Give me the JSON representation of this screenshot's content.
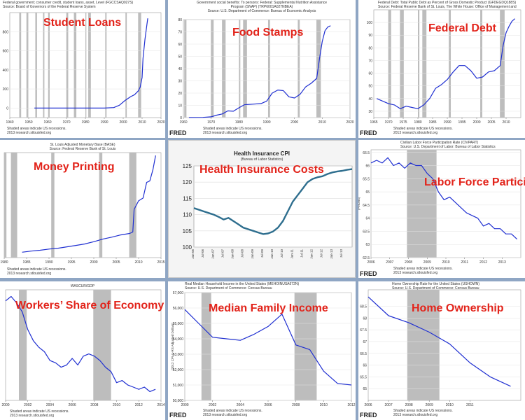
{
  "panels": [
    {
      "overlay": "Student Loans",
      "header": [
        "Federal government; consumer credit, student loans, asset, Level (FGCCSAQ027S)",
        "Source: Board of Governors of the Federal Reserve System"
      ],
      "footer": [
        "Shaded areas indicate US recessions.",
        "2013 research.stlouisfed.org"
      ],
      "fred": ""
    },
    {
      "overlay": "Food Stamps",
      "header": [
        "Government social benefits: To persons: Federal: Supplemental Nutrition Assistance",
        "Program (SNAP) (TRP6001A027NBEA)",
        "Source: U.S. Department of Commerce: Bureau of Economic Analysis"
      ],
      "footer": [
        "Shaded areas indicate US recessions.",
        "2013 research.stlouisfed.org"
      ],
      "fred": "FRED"
    },
    {
      "overlay": "Federal Debt",
      "header": [
        "Federal Debt: Total Public Debt as Percent of Gross Domestic Product (GFDEGDQ188S)",
        "Source: Federal Reserve Bank of St. Louis, The White House: Office of Management and"
      ],
      "footer": [
        "Shaded areas indicate US recessions.",
        "2013 research.stlouisfed.org"
      ],
      "fred": "FRED"
    },
    {
      "overlay": "Money Printing",
      "header": [
        "St. Louis Adjusted Monetary Base (BASE)",
        "Source: Federal Reserve Bank of St. Louis"
      ],
      "footer": [
        "Shaded areas indicate US recessions.",
        "2013 research.stlouisfed.org"
      ],
      "fred": ""
    },
    {
      "overlay": "Health Insurance Costs",
      "title": "Health Insurance CPI",
      "subtitle": "(Bureau of Labor Statistics)"
    },
    {
      "overlay": "Labor Force Participat",
      "header": [
        "Civilian Labor Force Participation Rate (CIVPART)",
        "Source: U.S. Department of Labor: Bureau of Labor Statistics"
      ],
      "footer": [
        "Shaded areas indicate US recessions.",
        "2013 research.stlouisfed.org"
      ],
      "fred": "FRED"
    },
    {
      "overlay": "Workers’ Share of Economy",
      "header": [
        "WASCUR/GDP"
      ],
      "footer": [
        "Shaded areas indicate US recessions.",
        "2013 research.stlouisfed.org"
      ],
      "fred": ""
    },
    {
      "overlay": "Median Family Income",
      "header": [
        "Real Median Household Income in the United States (MEHOINUSA672N)",
        "Source: U.S. Department of Commerce: Census Bureau"
      ],
      "footer": [
        "Shaded areas indicate US recessions.",
        "2013 research.stlouisfed.org"
      ],
      "fred": "FRED"
    },
    {
      "overlay": "Home Ownership",
      "header": [
        "Home Ownership Rate for the United States (USHOWN)",
        "Source: U.S. Department of Commerce: Census Bureau"
      ],
      "footer": [
        "Shaded areas indicate US recessions.",
        "2013 research.stlouisfed.org"
      ],
      "fred": "FRED"
    }
  ],
  "chart_data": [
    {
      "type": "line",
      "title": "Student Loans",
      "xlim": [
        1940,
        2020
      ],
      "ylim": [
        -100,
        1000
      ],
      "xticks": [
        1940,
        1950,
        1960,
        1970,
        1980,
        1990,
        2000,
        2010,
        2020
      ],
      "yticks": [
        0,
        200,
        400,
        600,
        800
      ],
      "recessions": [
        [
          1945,
          1946
        ],
        [
          1948.8,
          1949.8
        ],
        [
          1953.5,
          1954.4
        ],
        [
          1957.6,
          1958.3
        ],
        [
          1960.3,
          1961.1
        ],
        [
          1969.9,
          1970.9
        ],
        [
          1973.9,
          1975.2
        ],
        [
          1980,
          1980.5
        ],
        [
          1981.5,
          1982.9
        ],
        [
          1990.5,
          1991.2
        ],
        [
          2001.2,
          2001.9
        ],
        [
          2007.9,
          2009.5
        ]
      ],
      "x": [
        1953,
        1960,
        1970,
        1980,
        1990,
        1995,
        1998,
        2001,
        2004,
        2006,
        2008,
        2009,
        2010,
        2010.5,
        2011.5,
        2012.5,
        2013
      ],
      "y": [
        0,
        0,
        0,
        0,
        0,
        5,
        30,
        80,
        120,
        140,
        180,
        220,
        320,
        520,
        720,
        870,
        940
      ]
    },
    {
      "type": "line",
      "title": "Food Stamps",
      "xlim": [
        1960,
        2020
      ],
      "ylim": [
        0,
        80
      ],
      "xticks": [
        1960,
        1970,
        1980,
        1990,
        2000,
        2010,
        2020
      ],
      "yticks": [
        0,
        10,
        20,
        30,
        40,
        50,
        60,
        70,
        80
      ],
      "recessions": [
        [
          1960.3,
          1961.1
        ],
        [
          1969.9,
          1970.9
        ],
        [
          1973.9,
          1975.2
        ],
        [
          1980,
          1980.5
        ],
        [
          1981.5,
          1982.9
        ],
        [
          1990.5,
          1991.2
        ],
        [
          2001.2,
          2001.9
        ],
        [
          2007.9,
          2009.5
        ]
      ],
      "x": [
        1962,
        1967,
        1970,
        1972,
        1974,
        1976,
        1978,
        1980,
        1982,
        1985,
        1988,
        1990,
        1992,
        1994,
        1996,
        1998,
        2000,
        2002,
        2004,
        2006,
        2008,
        2009,
        2010,
        2011,
        2012,
        2013
      ],
      "y": [
        0.1,
        0.2,
        0.6,
        2,
        3,
        5.5,
        5.2,
        8,
        10.5,
        11,
        11.5,
        13.5,
        20,
        22.5,
        22,
        17,
        16,
        19,
        25,
        28,
        32,
        48,
        62,
        71,
        74,
        75
      ]
    },
    {
      "type": "line",
      "title": "Federal Debt",
      "xlim": [
        1965,
        2015
      ],
      "ylim": [
        25,
        110
      ],
      "xticks": [
        1965,
        1970,
        1975,
        1980,
        1985,
        1990,
        1995,
        2000,
        2005,
        2010
      ],
      "yticks": [
        30,
        40,
        50,
        60,
        70,
        80,
        90,
        100
      ],
      "recessions": [
        [
          1969.9,
          1970.9
        ],
        [
          1973.9,
          1975.2
        ],
        [
          1980,
          1980.5
        ],
        [
          1981.5,
          1982.9
        ],
        [
          1990.5,
          1991.2
        ],
        [
          2001.2,
          2001.9
        ],
        [
          2007.9,
          2009.5
        ]
      ],
      "x": [
        1966,
        1968,
        1970,
        1972,
        1974,
        1976,
        1978,
        1980,
        1982,
        1984,
        1986,
        1988,
        1990,
        1992,
        1994,
        1996,
        1998,
        2000,
        2002,
        2004,
        2006,
        2008,
        2009,
        2010,
        2011,
        2012,
        2013
      ],
      "y": [
        40,
        38,
        36,
        35,
        32,
        34,
        33,
        32,
        35,
        40,
        48,
        51,
        55,
        61,
        66,
        66,
        62,
        56,
        57,
        61,
        62,
        66,
        82,
        92,
        97,
        101,
        103
      ]
    },
    {
      "type": "line",
      "title": "Money Printing",
      "xlim": [
        1980,
        2015
      ],
      "ylim": [
        0,
        3700
      ],
      "xticks": [
        1980,
        1985,
        1990,
        1995,
        2000,
        2005,
        2010,
        2015
      ],
      "yticks": [],
      "recessions": [
        [
          1980,
          1980.5
        ],
        [
          1981.5,
          1982.9
        ],
        [
          1990.5,
          1991.2
        ],
        [
          2001.2,
          2001.9
        ],
        [
          2007.9,
          2009.5
        ]
      ],
      "x": [
        1984,
        1986,
        1988,
        1990,
        1992,
        1994,
        1996,
        1998,
        2000,
        2002,
        2004,
        2006,
        2008,
        2008.7,
        2009,
        2010,
        2011,
        2011.8,
        2012.5,
        2013.2,
        2013.8
      ],
      "y": [
        190,
        230,
        260,
        300,
        330,
        380,
        430,
        480,
        560,
        650,
        720,
        800,
        850,
        900,
        1700,
        2000,
        2100,
        2650,
        2700,
        3100,
        3600
      ]
    },
    {
      "type": "line",
      "title": "Health Insurance CPI",
      "subtitle": "(Bureau of Labor Statistics)",
      "ylim": [
        100,
        125
      ],
      "yticks": [
        100,
        105,
        110,
        115,
        120,
        125
      ],
      "categories": [
        "Jan-06",
        "Apr-06",
        "Jul-06",
        "Oct-06",
        "Jan-07",
        "Apr-07",
        "Jul-07",
        "Oct-07",
        "Jan-08",
        "Apr-08",
        "Jul-08",
        "Oct-08",
        "Jan-09",
        "Apr-09",
        "Jul-09",
        "Oct-09",
        "Jan-10",
        "Apr-10",
        "Jul-10",
        "Oct-10",
        "Jan-11",
        "Apr-11",
        "Jul-11",
        "Oct-11",
        "Jan-12",
        "Apr-12",
        "Jul-12",
        "Oct-12",
        "Jan-13",
        "Apr-13",
        "Jul-13",
        "Oct-13",
        "Jan-14"
      ],
      "xtick_labels": [
        "Jan-06",
        "Jul-06",
        "Jan-07",
        "Jul-07",
        "Jan-08",
        "Jul-08",
        "Jan-09",
        "Jul-09",
        "Jan-10",
        "Jul-10",
        "Jan-11",
        "Jul-11",
        "Jan-12",
        "Jul-12",
        "Jan-13",
        "Jul-13"
      ],
      "values": [
        112,
        111.5,
        111,
        110.5,
        110,
        109.3,
        108.5,
        109,
        108,
        107,
        106,
        105.5,
        105,
        104.5,
        104,
        104.2,
        104.8,
        106,
        108,
        111,
        114,
        116,
        118,
        120,
        121,
        121.5,
        121.8,
        122.5,
        123,
        123.3,
        123.5,
        123.8,
        124
      ]
    },
    {
      "type": "line",
      "title": "Labor Force Participation",
      "xlim": [
        2006,
        2014
      ],
      "ylim": [
        62.5,
        66.6
      ],
      "xticks": [
        2006,
        2007,
        2008,
        2009,
        2010,
        2011,
        2012,
        2013
      ],
      "xtick_labels": [
        "2006",
        "2007",
        "2008",
        "2009",
        "2010",
        "2011",
        "2012",
        "2013"
      ],
      "yticks": [
        62.5,
        63.0,
        63.5,
        64.0,
        64.5,
        65.0,
        65.5,
        66.0,
        66.5
      ],
      "ylabel": "(Percent)",
      "recessions": [
        [
          2007.92,
          2009.5
        ]
      ],
      "x": [
        2006,
        2006.3,
        2006.6,
        2006.9,
        2007.2,
        2007.5,
        2007.8,
        2008.1,
        2008.4,
        2008.7,
        2009,
        2009.3,
        2009.6,
        2009.9,
        2010.2,
        2010.5,
        2010.8,
        2011.1,
        2011.4,
        2011.7,
        2012,
        2012.3,
        2012.6,
        2012.9,
        2013.2,
        2013.5,
        2013.8
      ],
      "y": [
        66.1,
        66.2,
        66.1,
        66.3,
        66.0,
        66.1,
        65.9,
        66.1,
        66.0,
        66.0,
        65.7,
        65.5,
        65.0,
        64.7,
        64.8,
        64.6,
        64.4,
        64.2,
        64.1,
        64.0,
        63.7,
        63.8,
        63.6,
        63.6,
        63.4,
        63.4,
        63.2
      ]
    },
    {
      "type": "line",
      "title": "Workers’ Share of Economy",
      "xlim": [
        2000,
        2014
      ],
      "ylim": [
        0.425,
        0.475
      ],
      "xticks": [
        2000,
        2002,
        2004,
        2006,
        2008,
        2010,
        2012,
        2014
      ],
      "xtick_labels": [
        "2000",
        "2002",
        "2004",
        "2006",
        "2008",
        "2010",
        "2012",
        "2014"
      ],
      "yticks": [],
      "recessions": [
        [
          2001.2,
          2001.9
        ],
        [
          2007.9,
          2009.5
        ]
      ],
      "x": [
        2000,
        2000.5,
        2001,
        2001.5,
        2002,
        2002.5,
        2003,
        2003.5,
        2004,
        2004.5,
        2005,
        2005.5,
        2006,
        2006.5,
        2007,
        2007.5,
        2008,
        2008.5,
        2009,
        2009.5,
        2010,
        2010.5,
        2011,
        2011.5,
        2012,
        2012.5,
        2013,
        2013.5
      ],
      "y": [
        0.47,
        0.472,
        0.469,
        0.465,
        0.457,
        0.452,
        0.449,
        0.447,
        0.443,
        0.442,
        0.44,
        0.441,
        0.444,
        0.441,
        0.445,
        0.446,
        0.445,
        0.443,
        0.44,
        0.438,
        0.433,
        0.434,
        0.432,
        0.431,
        0.43,
        0.431,
        0.429,
        0.43
      ]
    },
    {
      "type": "line",
      "title": "Median Family Income",
      "xlim": [
        2000,
        2012
      ],
      "ylim": [
        50000,
        57000
      ],
      "xticks": [
        2000,
        2002,
        2004,
        2006,
        2008,
        2010,
        2012
      ],
      "xtick_labels": [
        "2000",
        "2002",
        "2004",
        "2006",
        "2008",
        "2010",
        "2012"
      ],
      "yticks": [
        50000,
        51000,
        52000,
        53000,
        54000,
        55000,
        56000,
        57000
      ],
      "ytick_labels": [
        "50,000",
        "51,000",
        "52,000",
        "53,000",
        "54,000",
        "55,000",
        "56,000",
        "57,000"
      ],
      "ylabel": "(2012 CPI-U-RS Adjusted Dollars)",
      "recessions": [
        [
          2001.2,
          2001.9
        ],
        [
          2007.9,
          2009.5
        ]
      ],
      "x": [
        2000,
        2001,
        2002,
        2003,
        2004,
        2005,
        2006,
        2007,
        2008,
        2009,
        2010,
        2011,
        2012
      ],
      "y": [
        55900,
        55000,
        54100,
        54000,
        53900,
        54300,
        54800,
        55600,
        53600,
        53300,
        51900,
        51100,
        51000
      ]
    },
    {
      "type": "line",
      "title": "Home Ownership",
      "xlim": [
        2006,
        2013.5
      ],
      "ylim": [
        64.5,
        69.2
      ],
      "xticks": [
        2006,
        2007,
        2008,
        2009,
        2010,
        2011
      ],
      "xtick_labels": [
        "2006",
        "2007",
        "2008",
        "2009",
        "2010",
        "2011"
      ],
      "yticks": [
        65.0,
        65.5,
        66.0,
        66.5,
        67.0,
        67.5,
        68.0,
        68.5
      ],
      "ylabel": "(Percent)",
      "recessions": [
        [
          2007.92,
          2009.5
        ]
      ],
      "x": [
        2006,
        2007,
        2008,
        2009,
        2010,
        2011,
        2012,
        2013
      ],
      "y": [
        68.9,
        68.1,
        67.8,
        67.4,
        66.9,
        66.1,
        65.5,
        65.1
      ]
    }
  ]
}
